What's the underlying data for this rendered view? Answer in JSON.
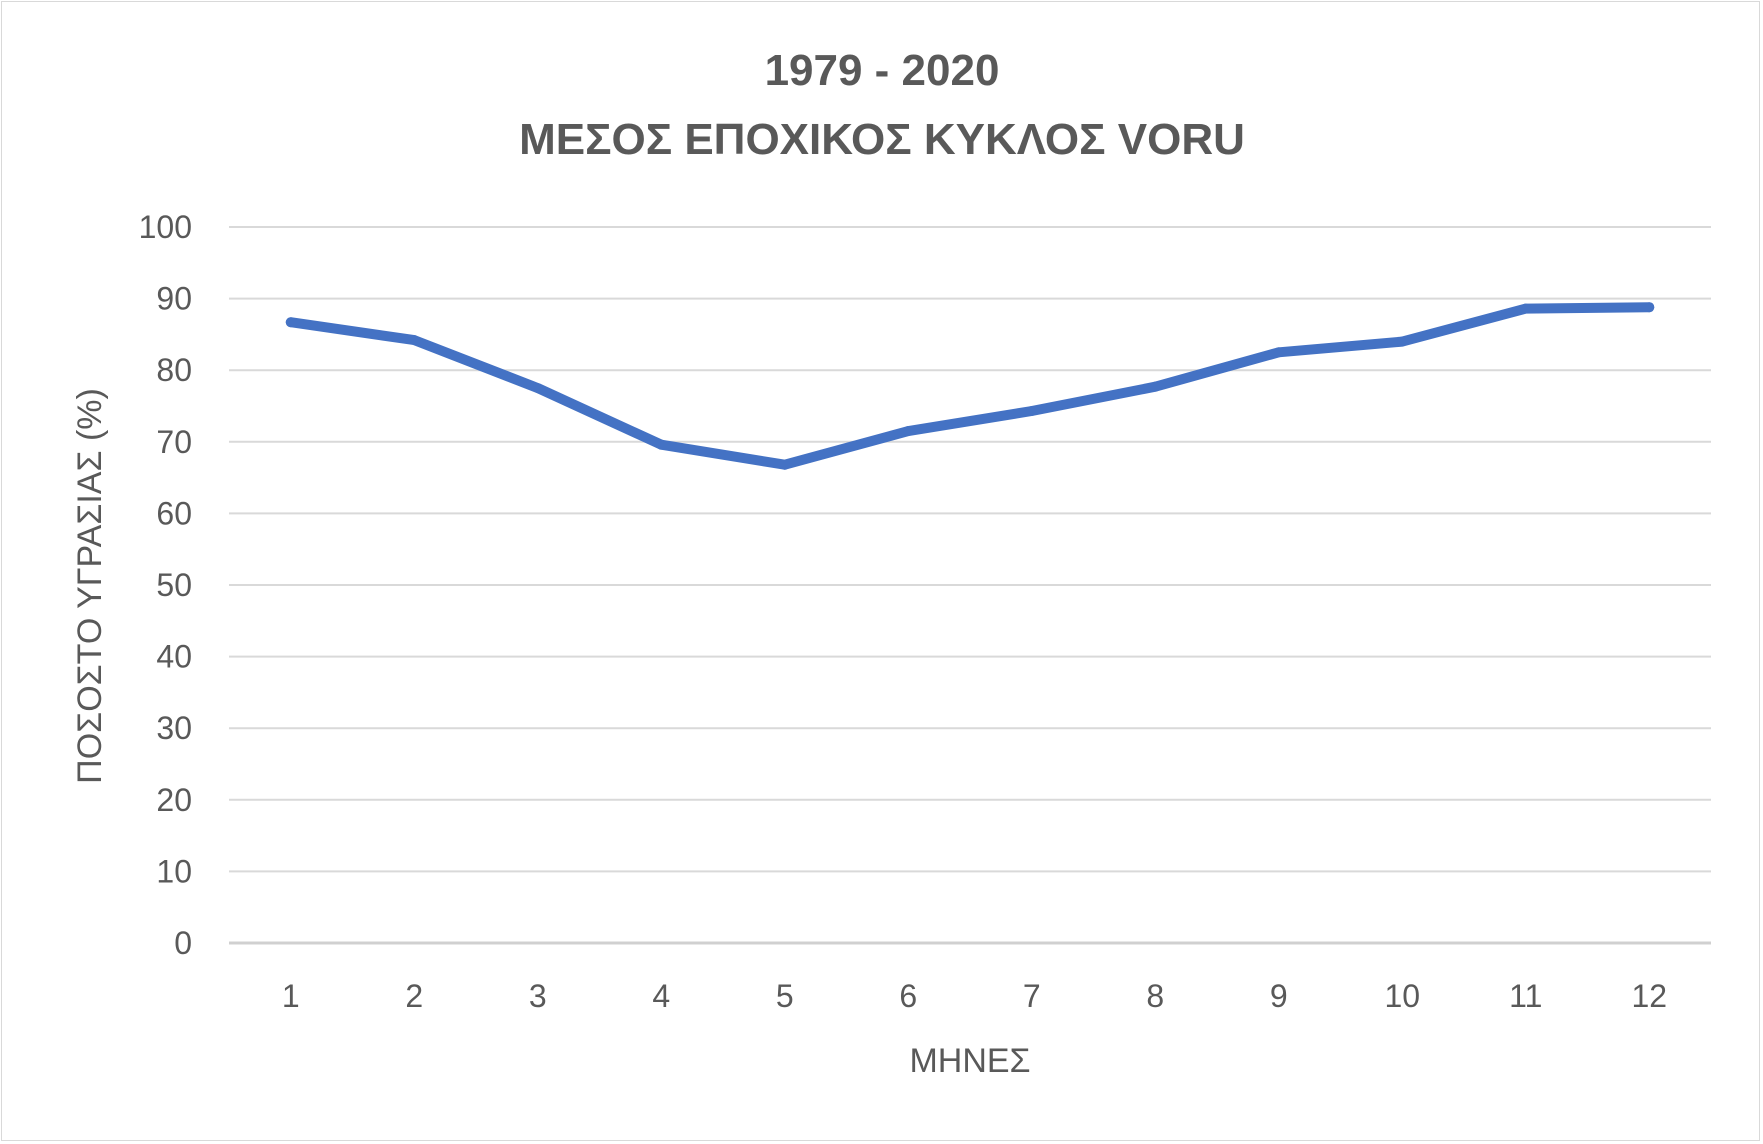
{
  "chart_data": {
    "type": "line",
    "title": "1979 - 2020",
    "subtitle": "ΜΕΣΟΣ ΕΠΟΧΙΚΟΣ ΚΥΚΛΟΣ VORU",
    "xlabel": "ΜΗΝΕΣ",
    "ylabel": "ΠΟΣΟΣΤΟ ΥΓΡΑΣΙΑΣ (%)",
    "categories": [
      "1",
      "2",
      "3",
      "4",
      "5",
      "6",
      "7",
      "8",
      "9",
      "10",
      "11",
      "12"
    ],
    "values": [
      86.7,
      84.2,
      77.5,
      69.6,
      66.8,
      71.5,
      74.3,
      77.7,
      82.5,
      84.0,
      88.6,
      88.8
    ],
    "ylim": [
      0,
      100
    ],
    "yticks": [
      "0",
      "10",
      "20",
      "30",
      "40",
      "50",
      "60",
      "70",
      "80",
      "90",
      "100"
    ],
    "grid": true,
    "legend": "none",
    "line_color": "#4472C4"
  }
}
